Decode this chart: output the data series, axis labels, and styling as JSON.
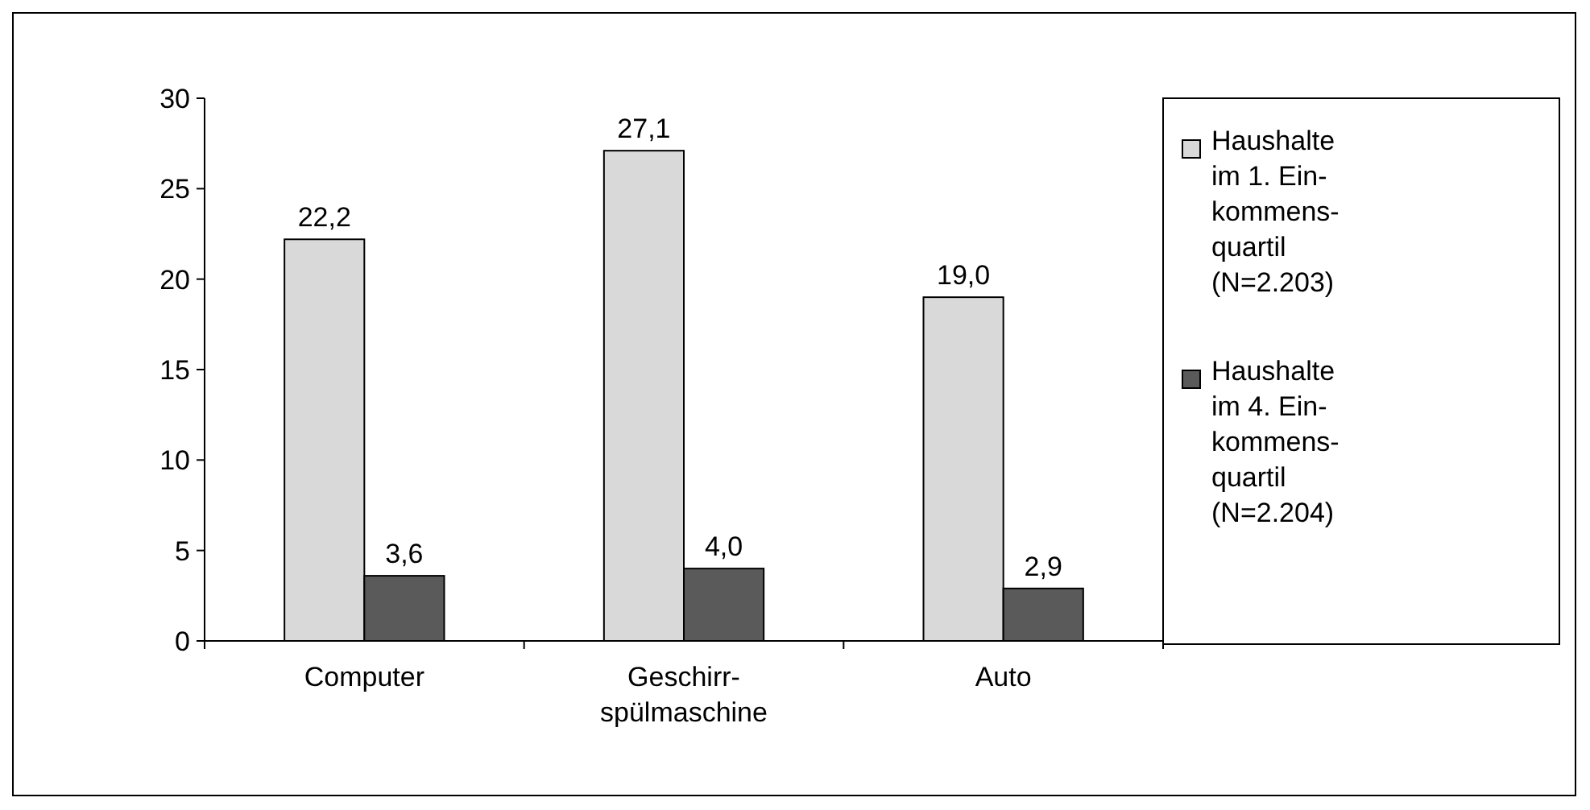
{
  "chart_data": {
    "type": "bar",
    "categories": [
      "Computer",
      "Geschirr-spülmaschine",
      "Auto"
    ],
    "series": [
      {
        "name": "Haushalte im 1. Ein-kommens-quartil (N=2.203)",
        "color": "#d9d9d9",
        "values": [
          22.2,
          27.1,
          19.0
        ]
      },
      {
        "name": "Haushalte im 4. Ein-kommens-quartil (N=2.204)",
        "color": "#5a5a5a",
        "values": [
          3.6,
          4.0,
          2.9
        ]
      }
    ],
    "value_labels": [
      [
        "22,2",
        "27,1",
        "19,0"
      ],
      [
        "3,6",
        "4,0",
        "2,9"
      ]
    ],
    "ylim": [
      0,
      30
    ],
    "yticks": [
      0,
      5,
      10,
      15,
      20,
      25,
      30
    ],
    "grid": false,
    "legend": "right"
  }
}
